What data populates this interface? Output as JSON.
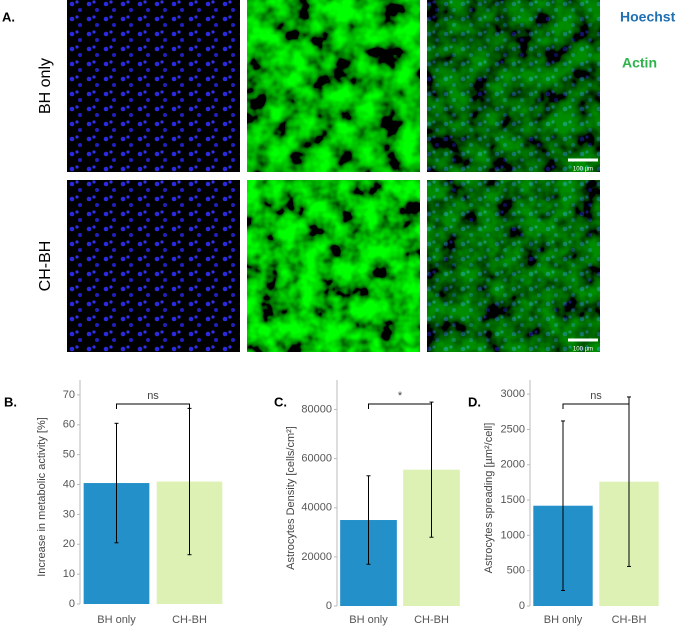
{
  "panel_a": {
    "label": "A.",
    "rows": [
      "BH only",
      "CH-BH"
    ],
    "legend": [
      "Hoechst",
      "Actin"
    ],
    "scale_bars": [
      "100 µm",
      "100 µm"
    ]
  },
  "chart_data": [
    {
      "type": "bar",
      "panel": "B.",
      "ylabel": "Increase in metabolic activity [%]",
      "categories": [
        "BH only",
        "CH-BH"
      ],
      "values": [
        40.5,
        41
      ],
      "errors": [
        20,
        24.5
      ],
      "colors": [
        "#2390c9",
        "#ddf1b5"
      ],
      "ylim": [
        0,
        75
      ],
      "yticks": [
        0,
        10,
        20,
        30,
        40,
        50,
        60,
        70
      ],
      "significance": "ns"
    },
    {
      "type": "bar",
      "panel": "C.",
      "ylabel": "Astrocytes Density [cells/cm²]",
      "categories": [
        "BH only",
        "CH-BH"
      ],
      "values": [
        35000,
        55500
      ],
      "errors": [
        18000,
        27500
      ],
      "colors": [
        "#2390c9",
        "#ddf1b5"
      ],
      "ylim": [
        0,
        92000
      ],
      "yticks": [
        0,
        20000,
        40000,
        60000,
        80000
      ],
      "significance": "*"
    },
    {
      "type": "bar",
      "panel": "D.",
      "ylabel": "Astrocytes spreading [µm²/cell]",
      "categories": [
        "BH only",
        "CH-BH"
      ],
      "values": [
        1420,
        1760
      ],
      "errors": [
        1200,
        1200
      ],
      "colors": [
        "#2390c9",
        "#ddf1b5"
      ],
      "ylim": [
        0,
        3200
      ],
      "yticks": [
        0,
        500,
        1000,
        1500,
        2000,
        2500,
        3000
      ],
      "significance": "ns"
    }
  ]
}
